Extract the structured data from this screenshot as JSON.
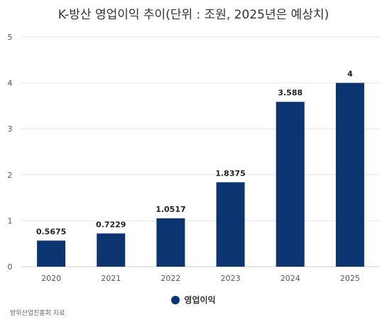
{
  "chart_data": {
    "type": "bar",
    "title": "K-방산 영업이익 추이(단위 : 조원, 2025년은 예상치)",
    "categories": [
      "2020",
      "2021",
      "2022",
      "2023",
      "2024",
      "2025"
    ],
    "series": [
      {
        "name": "영업이익",
        "values": [
          0.5675,
          0.7229,
          1.0517,
          1.8375,
          3.588,
          4
        ],
        "labels": [
          "0.5675",
          "0.7229",
          "1.0517",
          "1.8375",
          "3.588",
          "4"
        ],
        "color": "#0b3470"
      }
    ],
    "ylim": [
      0,
      5
    ],
    "yticks": [
      "0",
      "1",
      "2",
      "3",
      "4",
      "5"
    ],
    "grid": true,
    "legend": "bottom-center"
  },
  "source": "방위산업진흥회 자료"
}
